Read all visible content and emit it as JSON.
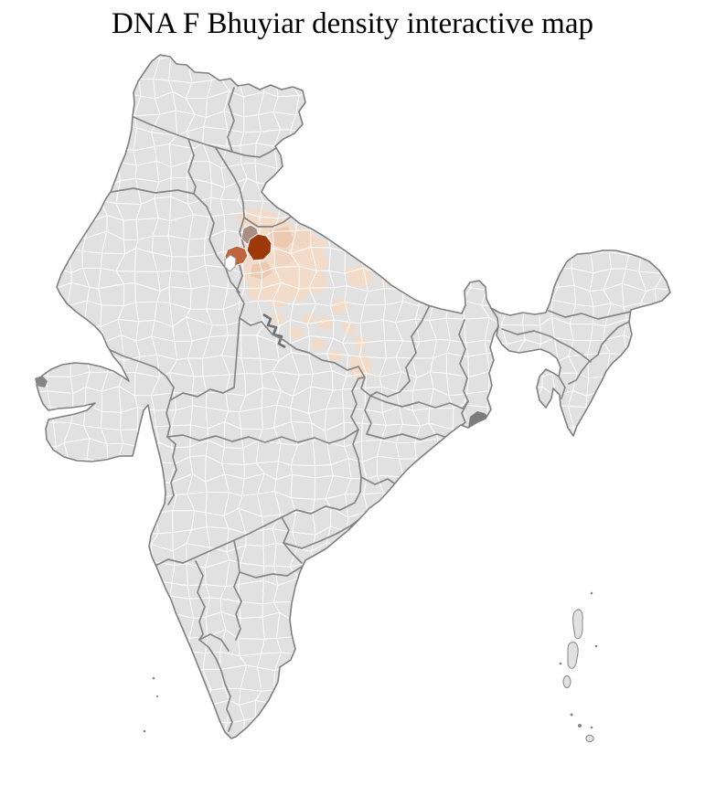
{
  "page": {
    "title": "DNA F Bhuyiar density interactive map",
    "background": "#ffffff"
  },
  "map": {
    "country": "India",
    "granularity": "districts",
    "palette": {
      "district_fill": "#e1e1e1",
      "district_border": "#ffffff",
      "state_border": "#858585",
      "country_border": "#7f7f7f",
      "sea": "#ffffff",
      "density_high": "#9d3908",
      "density_medium": "#bf653e",
      "density_medium_muted": "#a78e85",
      "density_low": "#f3dbc9",
      "density_low_mid": "#ecc9b0",
      "density_low_soft": "#f0d5c2",
      "delta_marsh": "#7c7c7c",
      "enclave_fill": "#ffffff"
    },
    "highlights": {
      "cluster_region": "north-india",
      "levels": [
        {
          "name": "high",
          "color": "#9d3908"
        },
        {
          "name": "medium",
          "color": "#bf653e"
        },
        {
          "name": "medium-muted",
          "color": "#a78e85"
        },
        {
          "name": "low",
          "color": "#f3dbc9"
        }
      ]
    }
  }
}
